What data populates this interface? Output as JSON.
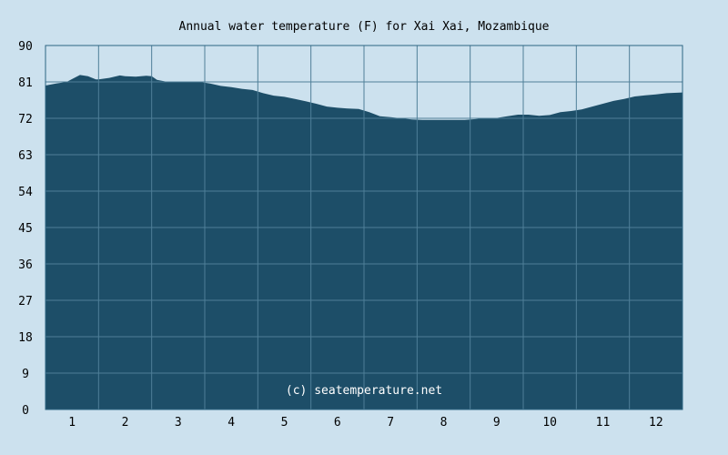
{
  "chart_data": {
    "type": "area",
    "title": "Annual water temperature (F) for Xai Xai, Mozambique",
    "xlabel": "",
    "ylabel": "",
    "xlim": [
      0.5,
      12.5
    ],
    "ylim": [
      0,
      90
    ],
    "x_ticks": [
      "1",
      "2",
      "3",
      "4",
      "5",
      "6",
      "7",
      "8",
      "9",
      "10",
      "11",
      "12"
    ],
    "y_ticks": [
      "0",
      "9",
      "18",
      "27",
      "36",
      "45",
      "54",
      "63",
      "72",
      "81",
      "90"
    ],
    "grid": true,
    "series": [
      {
        "x": [
          0.5,
          0.7,
          0.9,
          1.0,
          1.15,
          1.3,
          1.45,
          1.5,
          1.7,
          1.9,
          2.0,
          2.2,
          2.4,
          2.5,
          2.6,
          2.8,
          3.0,
          3.2,
          3.4,
          3.6,
          3.8,
          4.0,
          4.2,
          4.4,
          4.6,
          4.8,
          5.0,
          5.2,
          5.4,
          5.6,
          5.8,
          6.0,
          6.2,
          6.4,
          6.6,
          6.8,
          7.0,
          7.2,
          7.4,
          7.6,
          7.8,
          8.0,
          8.2,
          8.4,
          8.6,
          8.8,
          9.0,
          9.2,
          9.4,
          9.6,
          9.8,
          10.0,
          10.2,
          10.4,
          10.6,
          10.8,
          11.0,
          11.2,
          11.4,
          11.6,
          11.8,
          12.0,
          12.2,
          12.5
        ],
        "values": [
          80.1,
          80.6,
          81.0,
          81.7,
          82.7,
          82.4,
          81.6,
          81.6,
          82.0,
          82.6,
          82.4,
          82.3,
          82.5,
          82.4,
          81.5,
          81.0,
          81.1,
          81.1,
          81.0,
          80.6,
          80.0,
          79.7,
          79.3,
          79.0,
          78.2,
          77.6,
          77.3,
          76.8,
          76.2,
          75.6,
          74.9,
          74.6,
          74.4,
          74.3,
          73.5,
          72.5,
          72.3,
          72.0,
          71.7,
          71.6,
          71.6,
          71.6,
          71.6,
          71.6,
          71.8,
          72.1,
          72.1,
          72.5,
          72.9,
          72.9,
          72.6,
          72.8,
          73.5,
          73.8,
          74.2,
          74.9,
          75.6,
          76.3,
          76.8,
          77.4,
          77.7,
          77.9,
          78.2,
          78.4
        ]
      }
    ],
    "annotation": "(c) seatemperature.net",
    "colors": {
      "background": "#cce1ee",
      "area": "#1d4e68",
      "grid": "#4f7f98"
    }
  }
}
